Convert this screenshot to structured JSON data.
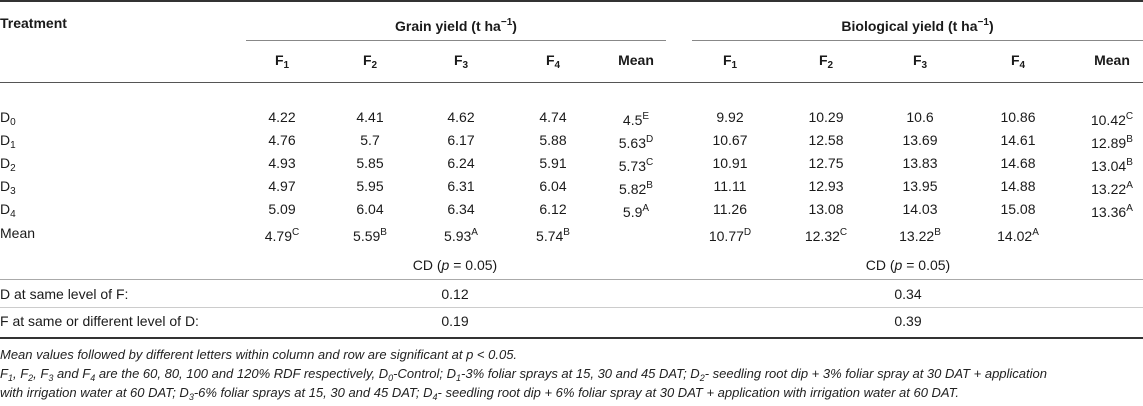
{
  "header": {
    "treatment": "Treatment",
    "group1": "Grain yield (t ha",
    "group1_sup": "−1",
    "group1_close": ")",
    "group2": "Biological yield (t ha",
    "group2_sup": "−1",
    "group2_close": ")",
    "cols": [
      {
        "base": "F",
        "sub": "1"
      },
      {
        "base": "F",
        "sub": "2"
      },
      {
        "base": "F",
        "sub": "3"
      },
      {
        "base": "F",
        "sub": "4"
      },
      {
        "base": "Mean",
        "sub": ""
      }
    ]
  },
  "rows": [
    {
      "label": "D",
      "label_sub": "0",
      "g": [
        "4.22",
        "4.41",
        "4.62",
        "4.74"
      ],
      "g_mean": "4.5",
      "g_mean_sup": "E",
      "b": [
        "9.92",
        "10.29",
        "10.6",
        "10.86"
      ],
      "b_mean": "10.42",
      "b_mean_sup": "C"
    },
    {
      "label": "D",
      "label_sub": "1",
      "g": [
        "4.76",
        "5.7",
        "6.17",
        "5.88"
      ],
      "g_mean": "5.63",
      "g_mean_sup": "D",
      "b": [
        "10.67",
        "12.58",
        "13.69",
        "14.61"
      ],
      "b_mean": "12.89",
      "b_mean_sup": "B"
    },
    {
      "label": "D",
      "label_sub": "2",
      "g": [
        "4.93",
        "5.85",
        "6.24",
        "5.91"
      ],
      "g_mean": "5.73",
      "g_mean_sup": "C",
      "b": [
        "10.91",
        "12.75",
        "13.83",
        "14.68"
      ],
      "b_mean": "13.04",
      "b_mean_sup": "B"
    },
    {
      "label": "D",
      "label_sub": "3",
      "g": [
        "4.97",
        "5.95",
        "6.31",
        "6.04"
      ],
      "g_mean": "5.82",
      "g_mean_sup": "B",
      "b": [
        "11.11",
        "12.93",
        "13.95",
        "14.88"
      ],
      "b_mean": "13.22",
      "b_mean_sup": "A"
    },
    {
      "label": "D",
      "label_sub": "4",
      "g": [
        "5.09",
        "6.04",
        "6.34",
        "6.12"
      ],
      "g_mean": "5.9",
      "g_mean_sup": "A",
      "b": [
        "11.26",
        "13.08",
        "14.03",
        "15.08"
      ],
      "b_mean": "13.36",
      "b_mean_sup": "A"
    }
  ],
  "mean_row": {
    "label": "Mean",
    "g": [
      {
        "v": "4.79",
        "s": "C"
      },
      {
        "v": "5.59",
        "s": "B"
      },
      {
        "v": "5.93",
        "s": "A"
      },
      {
        "v": "5.74",
        "s": "B"
      }
    ],
    "b": [
      {
        "v": "10.77",
        "s": "D"
      },
      {
        "v": "12.32",
        "s": "C"
      },
      {
        "v": "13.22",
        "s": "B"
      },
      {
        "v": "14.02",
        "s": "A"
      }
    ]
  },
  "cd": {
    "heading_pre": "CD (",
    "heading_p": "p",
    "heading_post": " = 0.05)",
    "row1_label": "D at same level of F:",
    "row1_g": "0.12",
    "row1_b": "0.34",
    "row2_label": "F at same or different level of D:",
    "row2_g": "0.19",
    "row2_b": "0.39"
  },
  "notes": {
    "line1": "Mean values followed by different letters within column and row are significant at p < 0.05.",
    "line2": [
      {
        "t": "F"
      },
      {
        "t": "1",
        "sub": true
      },
      {
        "t": ", F"
      },
      {
        "t": "2",
        "sub": true
      },
      {
        "t": ", F"
      },
      {
        "t": "3",
        "sub": true
      },
      {
        "t": " and F"
      },
      {
        "t": "4",
        "sub": true
      },
      {
        "t": " are the 60, 80, 100 and 120% RDF respectively, D"
      },
      {
        "t": "0",
        "sub": true
      },
      {
        "t": "-Control; D"
      },
      {
        "t": "1",
        "sub": true
      },
      {
        "t": "-3% foliar sprays at 15, 30 and 45 DAT; D"
      },
      {
        "t": "2",
        "sub": true
      },
      {
        "t": "- seedling root dip + 3% foliar spray at 30 DAT + application"
      }
    ],
    "line3": [
      {
        "t": "with irrigation water at 60 DAT; D"
      },
      {
        "t": "3",
        "sub": true
      },
      {
        "t": "-6% foliar sprays at 15, 30 and 45 DAT; D"
      },
      {
        "t": "4",
        "sub": true
      },
      {
        "t": "- seedling root dip + 6% foliar spray at 30 DAT + application with irrigation water at 60 DAT."
      }
    ]
  }
}
